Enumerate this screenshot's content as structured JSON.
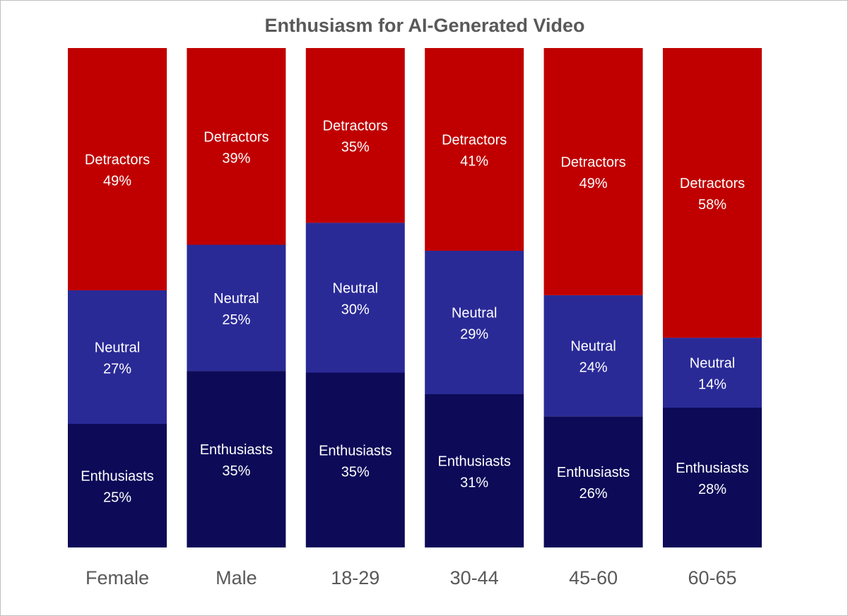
{
  "chart_data": {
    "type": "bar",
    "stacked": true,
    "normalized": true,
    "title": "Enthusiasm for AI-Generated Video",
    "categories": [
      "Female",
      "Male",
      "18-29",
      "30-44",
      "45-60",
      "60-65"
    ],
    "series": [
      {
        "name": "Enthusiasts",
        "color": "#0d0a58",
        "values": [
          25,
          35,
          35,
          31,
          26,
          28
        ]
      },
      {
        "name": "Neutral",
        "color": "#2a2a97",
        "values": [
          27,
          25,
          30,
          29,
          24,
          14
        ]
      },
      {
        "name": "Detractors",
        "color": "#c00000",
        "values": [
          49,
          39,
          35,
          41,
          49,
          58
        ]
      }
    ],
    "value_suffix": "%",
    "xlabel": "",
    "ylabel": "",
    "grid": false,
    "legend": "none"
  }
}
